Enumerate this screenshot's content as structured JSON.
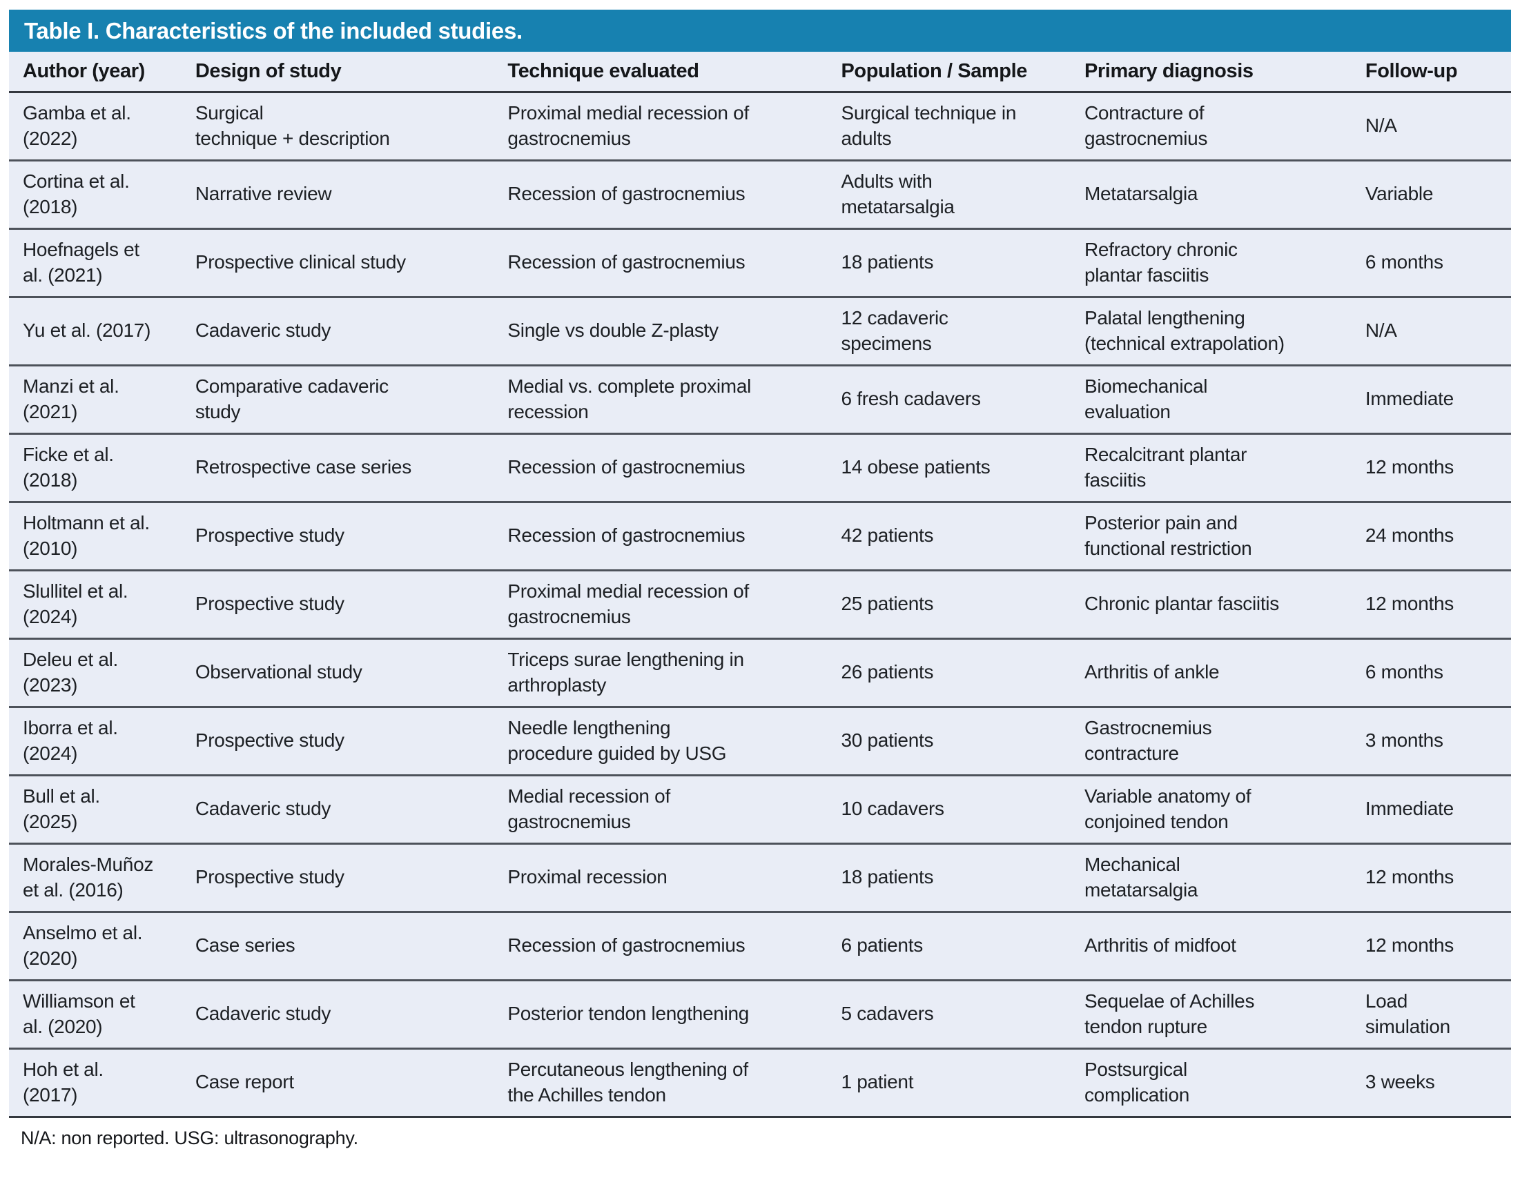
{
  "title": "Table I. Characteristics of the included studies.",
  "colors": {
    "title_bar": "#1781b0",
    "row_background": "#e9edf6",
    "separator": "#4d525a",
    "text": "#1d2024"
  },
  "columns": [
    "Author (year)",
    "Design of study",
    "Technique evaluated",
    "Population / Sample",
    "Primary diagnosis",
    "Follow-up"
  ],
  "rows": [
    {
      "cells": [
        "Gamba et al.\n(2022)",
        "Surgical\ntechnique + description",
        "Proximal medial recession of\ngastrocnemius",
        "Surgical technique in\nadults",
        "Contracture of\ngastrocnemius",
        "N/A"
      ]
    },
    {
      "cells": [
        "Cortina et al.\n(2018)",
        "Narrative review",
        "Recession of gastrocnemius",
        "Adults with\nmetatarsalgia",
        "Metatarsalgia",
        "Variable"
      ]
    },
    {
      "cells": [
        "Hoefnagels et\nal. (2021)",
        "Prospective clinical study",
        "Recession of gastrocnemius",
        "18 patients",
        "Refractory chronic\nplantar fasciitis",
        "6 months"
      ]
    },
    {
      "cells": [
        "Yu et al. (2017)",
        "Cadaveric study",
        "Single vs double Z-plasty",
        "12 cadaveric\nspecimens",
        "Palatal lengthening\n(technical extrapolation)",
        "N/A"
      ]
    },
    {
      "cells": [
        "Manzi et al.\n(2021)",
        "Comparative cadaveric\nstudy",
        "Medial vs. complete proximal\nrecession",
        "6 fresh cadavers",
        "Biomechanical\nevaluation",
        "Immediate"
      ]
    },
    {
      "cells": [
        "Ficke et al.\n(2018)",
        "Retrospective case series",
        "Recession of gastrocnemius",
        "14 obese patients",
        "Recalcitrant plantar\nfasciitis",
        "12 months"
      ]
    },
    {
      "cells": [
        "Holtmann et al.\n(2010)",
        "Prospective study",
        "Recession of gastrocnemius",
        "42 patients",
        "Posterior pain and\nfunctional restriction",
        "24 months"
      ]
    },
    {
      "cells": [
        "Slullitel et al.\n(2024)",
        "Prospective study",
        "Proximal medial recession of\ngastrocnemius",
        "25 patients",
        "Chronic plantar fasciitis",
        "12 months"
      ]
    },
    {
      "cells": [
        "Deleu et al.\n(2023)",
        "Observational study",
        "Triceps surae lengthening in\narthroplasty",
        "26 patients",
        "Arthritis of ankle",
        "6 months"
      ]
    },
    {
      "cells": [
        "Iborra et al.\n(2024)",
        "Prospective study",
        "Needle lengthening\nprocedure guided by USG",
        "30 patients",
        "Gastrocnemius\ncontracture",
        "3 months"
      ]
    },
    {
      "cells": [
        "Bull et al.\n(2025)",
        "Cadaveric study",
        "Medial recession of\ngastrocnemius",
        "10 cadavers",
        "Variable anatomy of\nconjoined tendon",
        "Immediate"
      ]
    },
    {
      "cells": [
        "Morales-Muñoz\net al. (2016)",
        "Prospective study",
        "Proximal recession",
        "18 patients",
        "Mechanical\nmetatarsalgia",
        "12 months"
      ]
    },
    {
      "cells": [
        "Anselmo et al.\n(2020)",
        "Case series",
        "Recession of gastrocnemius",
        "6 patients",
        "Arthritis of midfoot",
        "12 months"
      ]
    },
    {
      "cells": [
        "Williamson et\nal. (2020)",
        "Cadaveric study",
        "Posterior tendon lengthening",
        "5 cadavers",
        "Sequelae of Achilles\ntendon rupture",
        "Load\nsimulation"
      ]
    },
    {
      "cells": [
        "Hoh et al.\n(2017)",
        "Case report",
        "Percutaneous lengthening of\nthe Achilles tendon",
        "1 patient",
        "Postsurgical\ncomplication",
        "3 weeks"
      ]
    }
  ],
  "footnote": "N/A: non reported. USG: ultrasonography."
}
